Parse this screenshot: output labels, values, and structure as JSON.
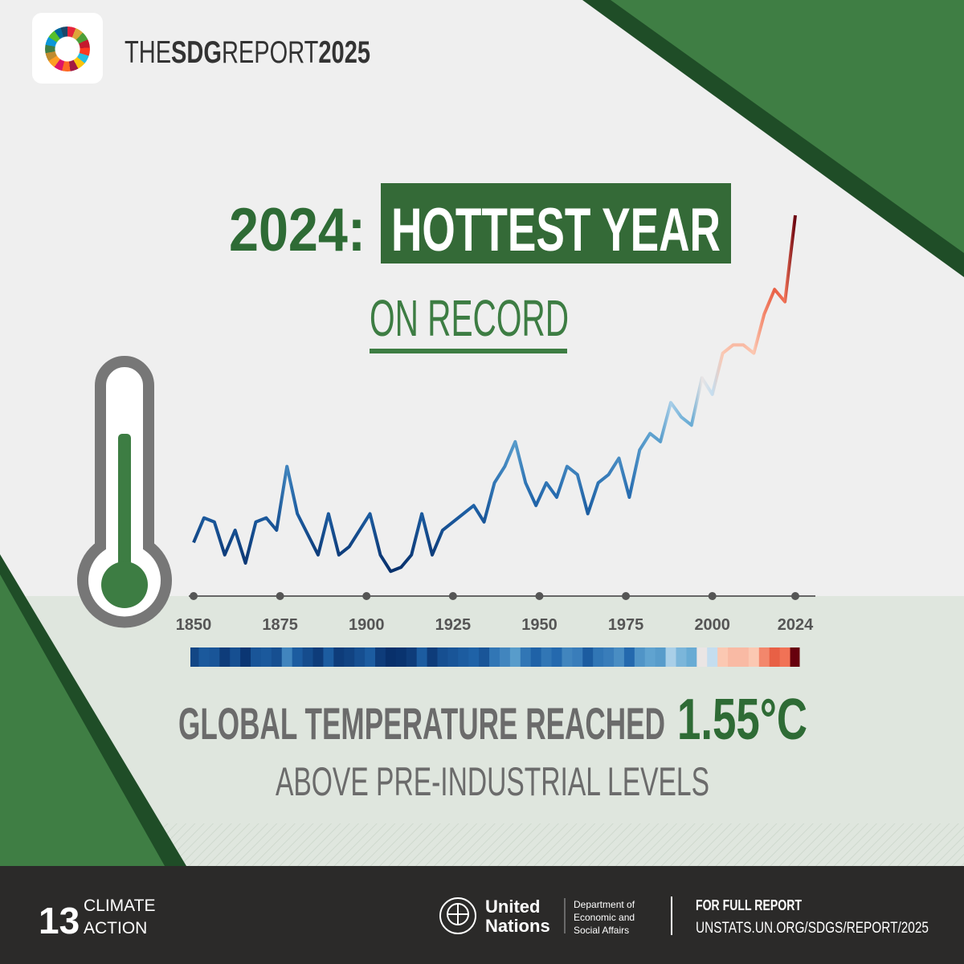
{
  "header": {
    "brand": [
      "THE",
      "SDG",
      "REPORT",
      "2025"
    ]
  },
  "headline": {
    "year": "2024:",
    "emphasis": "HOTTEST YEAR",
    "sub": "ON RECORD"
  },
  "chart_data": {
    "type": "line",
    "x": [
      1850,
      1853,
      1856,
      1859,
      1862,
      1865,
      1868,
      1871,
      1874,
      1877,
      1880,
      1883,
      1886,
      1889,
      1892,
      1895,
      1898,
      1901,
      1904,
      1907,
      1910,
      1913,
      1916,
      1919,
      1922,
      1925,
      1928,
      1931,
      1934,
      1937,
      1940,
      1943,
      1946,
      1949,
      1952,
      1955,
      1958,
      1961,
      1964,
      1967,
      1970,
      1973,
      1976,
      1979,
      1982,
      1985,
      1988,
      1991,
      1994,
      1997,
      2000,
      2003,
      2006,
      2009,
      2012,
      2015,
      2018,
      2021,
      2024
    ],
    "values": [
      -0.04,
      0.08,
      0.06,
      -0.1,
      0.02,
      -0.14,
      0.06,
      0.08,
      0.02,
      0.33,
      0.1,
      0.0,
      -0.1,
      0.1,
      -0.1,
      -0.06,
      0.02,
      0.1,
      -0.1,
      -0.18,
      -0.16,
      -0.1,
      0.1,
      -0.1,
      0.02,
      0.06,
      0.1,
      0.14,
      0.06,
      0.25,
      0.33,
      0.45,
      0.25,
      0.14,
      0.25,
      0.18,
      0.33,
      0.29,
      0.1,
      0.25,
      0.29,
      0.37,
      0.18,
      0.41,
      0.49,
      0.45,
      0.64,
      0.57,
      0.53,
      0.76,
      0.68,
      0.88,
      0.92,
      0.92,
      0.88,
      1.07,
      1.19,
      1.13,
      1.55
    ],
    "xlim": [
      1850,
      2024
    ],
    "ylim": [
      -0.3,
      1.55
    ],
    "xticks": [
      1850,
      1875,
      1900,
      1925,
      1950,
      1975,
      2000,
      2024
    ]
  },
  "statement": {
    "lead": "GLOBAL TEMPERATURE REACHED",
    "figure": "1.55°C",
    "tail": "ABOVE PRE-INDUSTRIAL LEVELS"
  },
  "footer": {
    "goal_number": "13",
    "goal_name": [
      "CLIMATE",
      "ACTION"
    ],
    "org": [
      "United",
      "Nations"
    ],
    "department": [
      "Department of",
      "Economic and",
      "Social Affairs"
    ],
    "cta": "FOR FULL REPORT",
    "url": "UNSTATS.UN.ORG/SDGS/REPORT/2025"
  }
}
